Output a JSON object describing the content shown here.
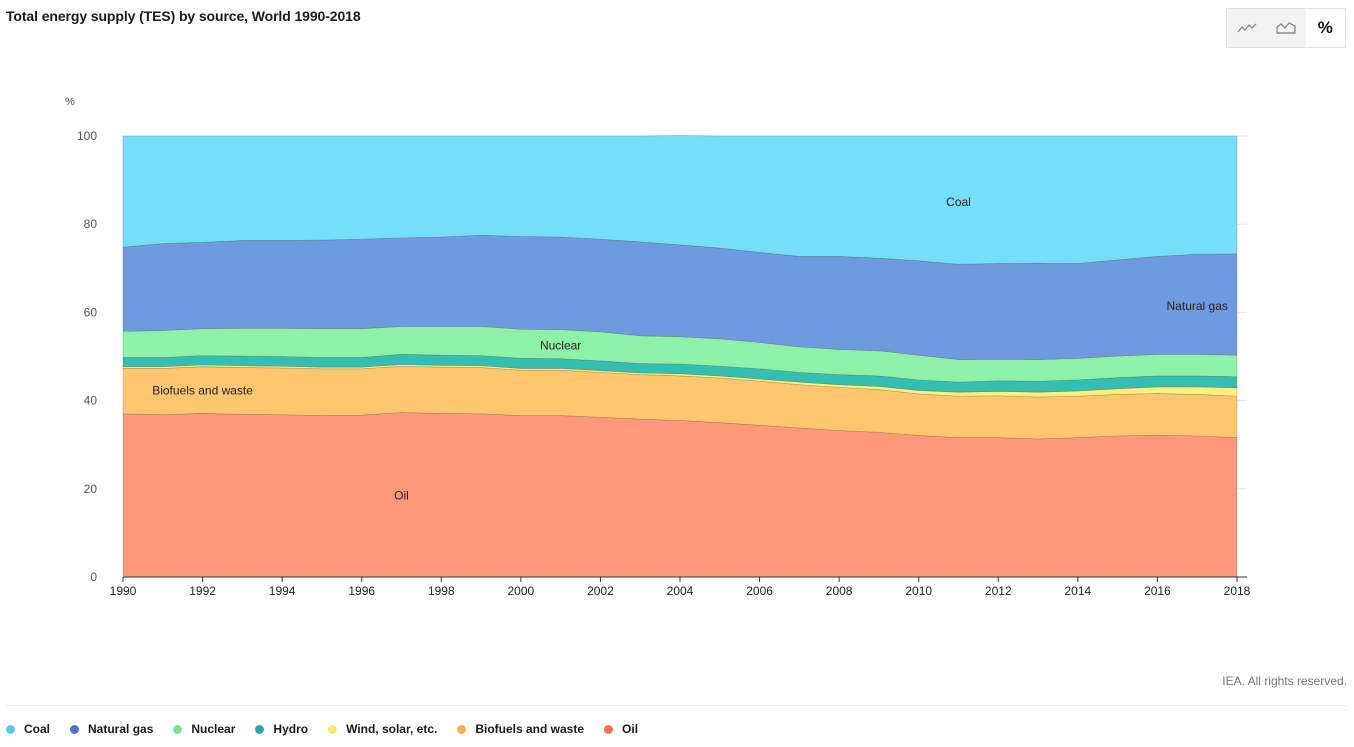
{
  "header": {
    "title": "Total energy supply (TES) by source, World 1990-2018"
  },
  "toolbar": {
    "buttons": [
      {
        "name": "line-chart",
        "icon": "line-chart-icon"
      },
      {
        "name": "area-chart",
        "icon": "area-chart-icon"
      },
      {
        "name": "percent",
        "label": "%",
        "active": true
      }
    ]
  },
  "footer": {
    "credit": "IEA. All rights reserved."
  },
  "legend": [
    {
      "label": "Coal",
      "color": "#56cbf2"
    },
    {
      "label": "Natural gas",
      "color": "#4a75c9"
    },
    {
      "label": "Nuclear",
      "color": "#75e398"
    },
    {
      "label": "Hydro",
      "color": "#22aba0"
    },
    {
      "label": "Wind, solar, etc.",
      "color": "#f6ea6a"
    },
    {
      "label": "Biofuels and waste",
      "color": "#f6b04f"
    },
    {
      "label": "Oil",
      "color": "#f7704f"
    }
  ],
  "chart_data": {
    "type": "area",
    "stacked": true,
    "ylabel": "%",
    "ylim": [
      0,
      100
    ],
    "yticks": [
      0,
      20,
      40,
      60,
      80,
      100
    ],
    "xticks": [
      1990,
      1992,
      1994,
      1996,
      1998,
      2000,
      2002,
      2004,
      2006,
      2008,
      2010,
      2012,
      2014,
      2016,
      2018
    ],
    "x": [
      1990,
      1991,
      1992,
      1993,
      1994,
      1995,
      1996,
      1997,
      1998,
      1999,
      2000,
      2001,
      2002,
      2003,
      2004,
      2005,
      2006,
      2007,
      2008,
      2009,
      2010,
      2011,
      2012,
      2013,
      2014,
      2015,
      2016,
      2017,
      2018
    ],
    "grid": true,
    "series": [
      {
        "name": "Oil",
        "fill": "#ff9878",
        "values": [
          37.0,
          36.8,
          37.1,
          36.9,
          36.8,
          36.6,
          36.7,
          37.3,
          37.1,
          37.0,
          36.6,
          36.6,
          36.2,
          35.8,
          35.5,
          35.0,
          34.4,
          33.8,
          33.2,
          32.8,
          32.1,
          31.6,
          31.6,
          31.3,
          31.6,
          32.0,
          32.1,
          32.0,
          31.6
        ]
      },
      {
        "name": "Biofuels and waste",
        "fill": "#ffc670",
        "values": [
          10.3,
          10.5,
          10.6,
          10.6,
          10.6,
          10.6,
          10.5,
          10.5,
          10.5,
          10.5,
          10.3,
          10.3,
          10.2,
          10.1,
          10.1,
          10.1,
          10.0,
          9.8,
          9.8,
          9.7,
          9.4,
          9.4,
          9.5,
          9.5,
          9.4,
          9.4,
          9.5,
          9.4,
          9.4
        ]
      },
      {
        "name": "Wind, solar, etc.",
        "fill": "#fff07c",
        "values": [
          0.4,
          0.4,
          0.4,
          0.4,
          0.4,
          0.4,
          0.4,
          0.4,
          0.4,
          0.4,
          0.4,
          0.4,
          0.4,
          0.4,
          0.5,
          0.5,
          0.5,
          0.6,
          0.6,
          0.7,
          0.8,
          0.9,
          1.0,
          1.1,
          1.2,
          1.3,
          1.5,
          1.7,
          1.9
        ]
      },
      {
        "name": "Hydro",
        "fill": "#34bfb2",
        "values": [
          2.1,
          2.1,
          2.1,
          2.2,
          2.2,
          2.2,
          2.2,
          2.3,
          2.3,
          2.3,
          2.3,
          2.2,
          2.2,
          2.1,
          2.2,
          2.2,
          2.3,
          2.2,
          2.3,
          2.4,
          2.4,
          2.3,
          2.4,
          2.5,
          2.5,
          2.5,
          2.5,
          2.5,
          2.5
        ]
      },
      {
        "name": "Nuclear",
        "fill": "#8ef1a8",
        "values": [
          5.9,
          6.1,
          6.1,
          6.3,
          6.4,
          6.5,
          6.5,
          6.3,
          6.5,
          6.6,
          6.6,
          6.6,
          6.6,
          6.3,
          6.2,
          6.2,
          6.0,
          5.8,
          5.7,
          5.7,
          5.6,
          5.1,
          4.9,
          4.9,
          4.9,
          4.9,
          4.9,
          4.9,
          4.9
        ]
      },
      {
        "name": "Natural gas",
        "fill": "#6f9ae0",
        "values": [
          19.1,
          19.7,
          19.6,
          19.9,
          19.9,
          20.1,
          20.3,
          20.1,
          20.3,
          20.7,
          21.0,
          21.0,
          21.0,
          21.3,
          20.8,
          20.6,
          20.4,
          20.5,
          21.1,
          21.0,
          21.4,
          21.6,
          21.7,
          21.9,
          21.5,
          21.8,
          22.2,
          22.7,
          23.0
        ]
      },
      {
        "name": "Coal",
        "fill": "#75def9",
        "values": [
          25.2,
          24.4,
          24.1,
          23.7,
          23.7,
          23.6,
          23.4,
          23.1,
          22.9,
          22.5,
          22.8,
          22.9,
          23.4,
          24.0,
          24.8,
          25.4,
          26.4,
          27.3,
          27.3,
          27.7,
          28.3,
          29.1,
          28.9,
          28.8,
          28.9,
          28.1,
          27.3,
          26.8,
          26.7
        ]
      }
    ],
    "annotations": [
      {
        "text": "Coal",
        "x": 2011,
        "y": 85
      },
      {
        "text": "Natural gas",
        "x": 2017,
        "y": 61.5
      },
      {
        "text": "Nuclear",
        "x": 2001,
        "y": 52.5
      },
      {
        "text": "Biofuels and waste",
        "x": 1992,
        "y": 42.3
      },
      {
        "text": "Oil",
        "x": 1997,
        "y": 18.5
      }
    ]
  }
}
